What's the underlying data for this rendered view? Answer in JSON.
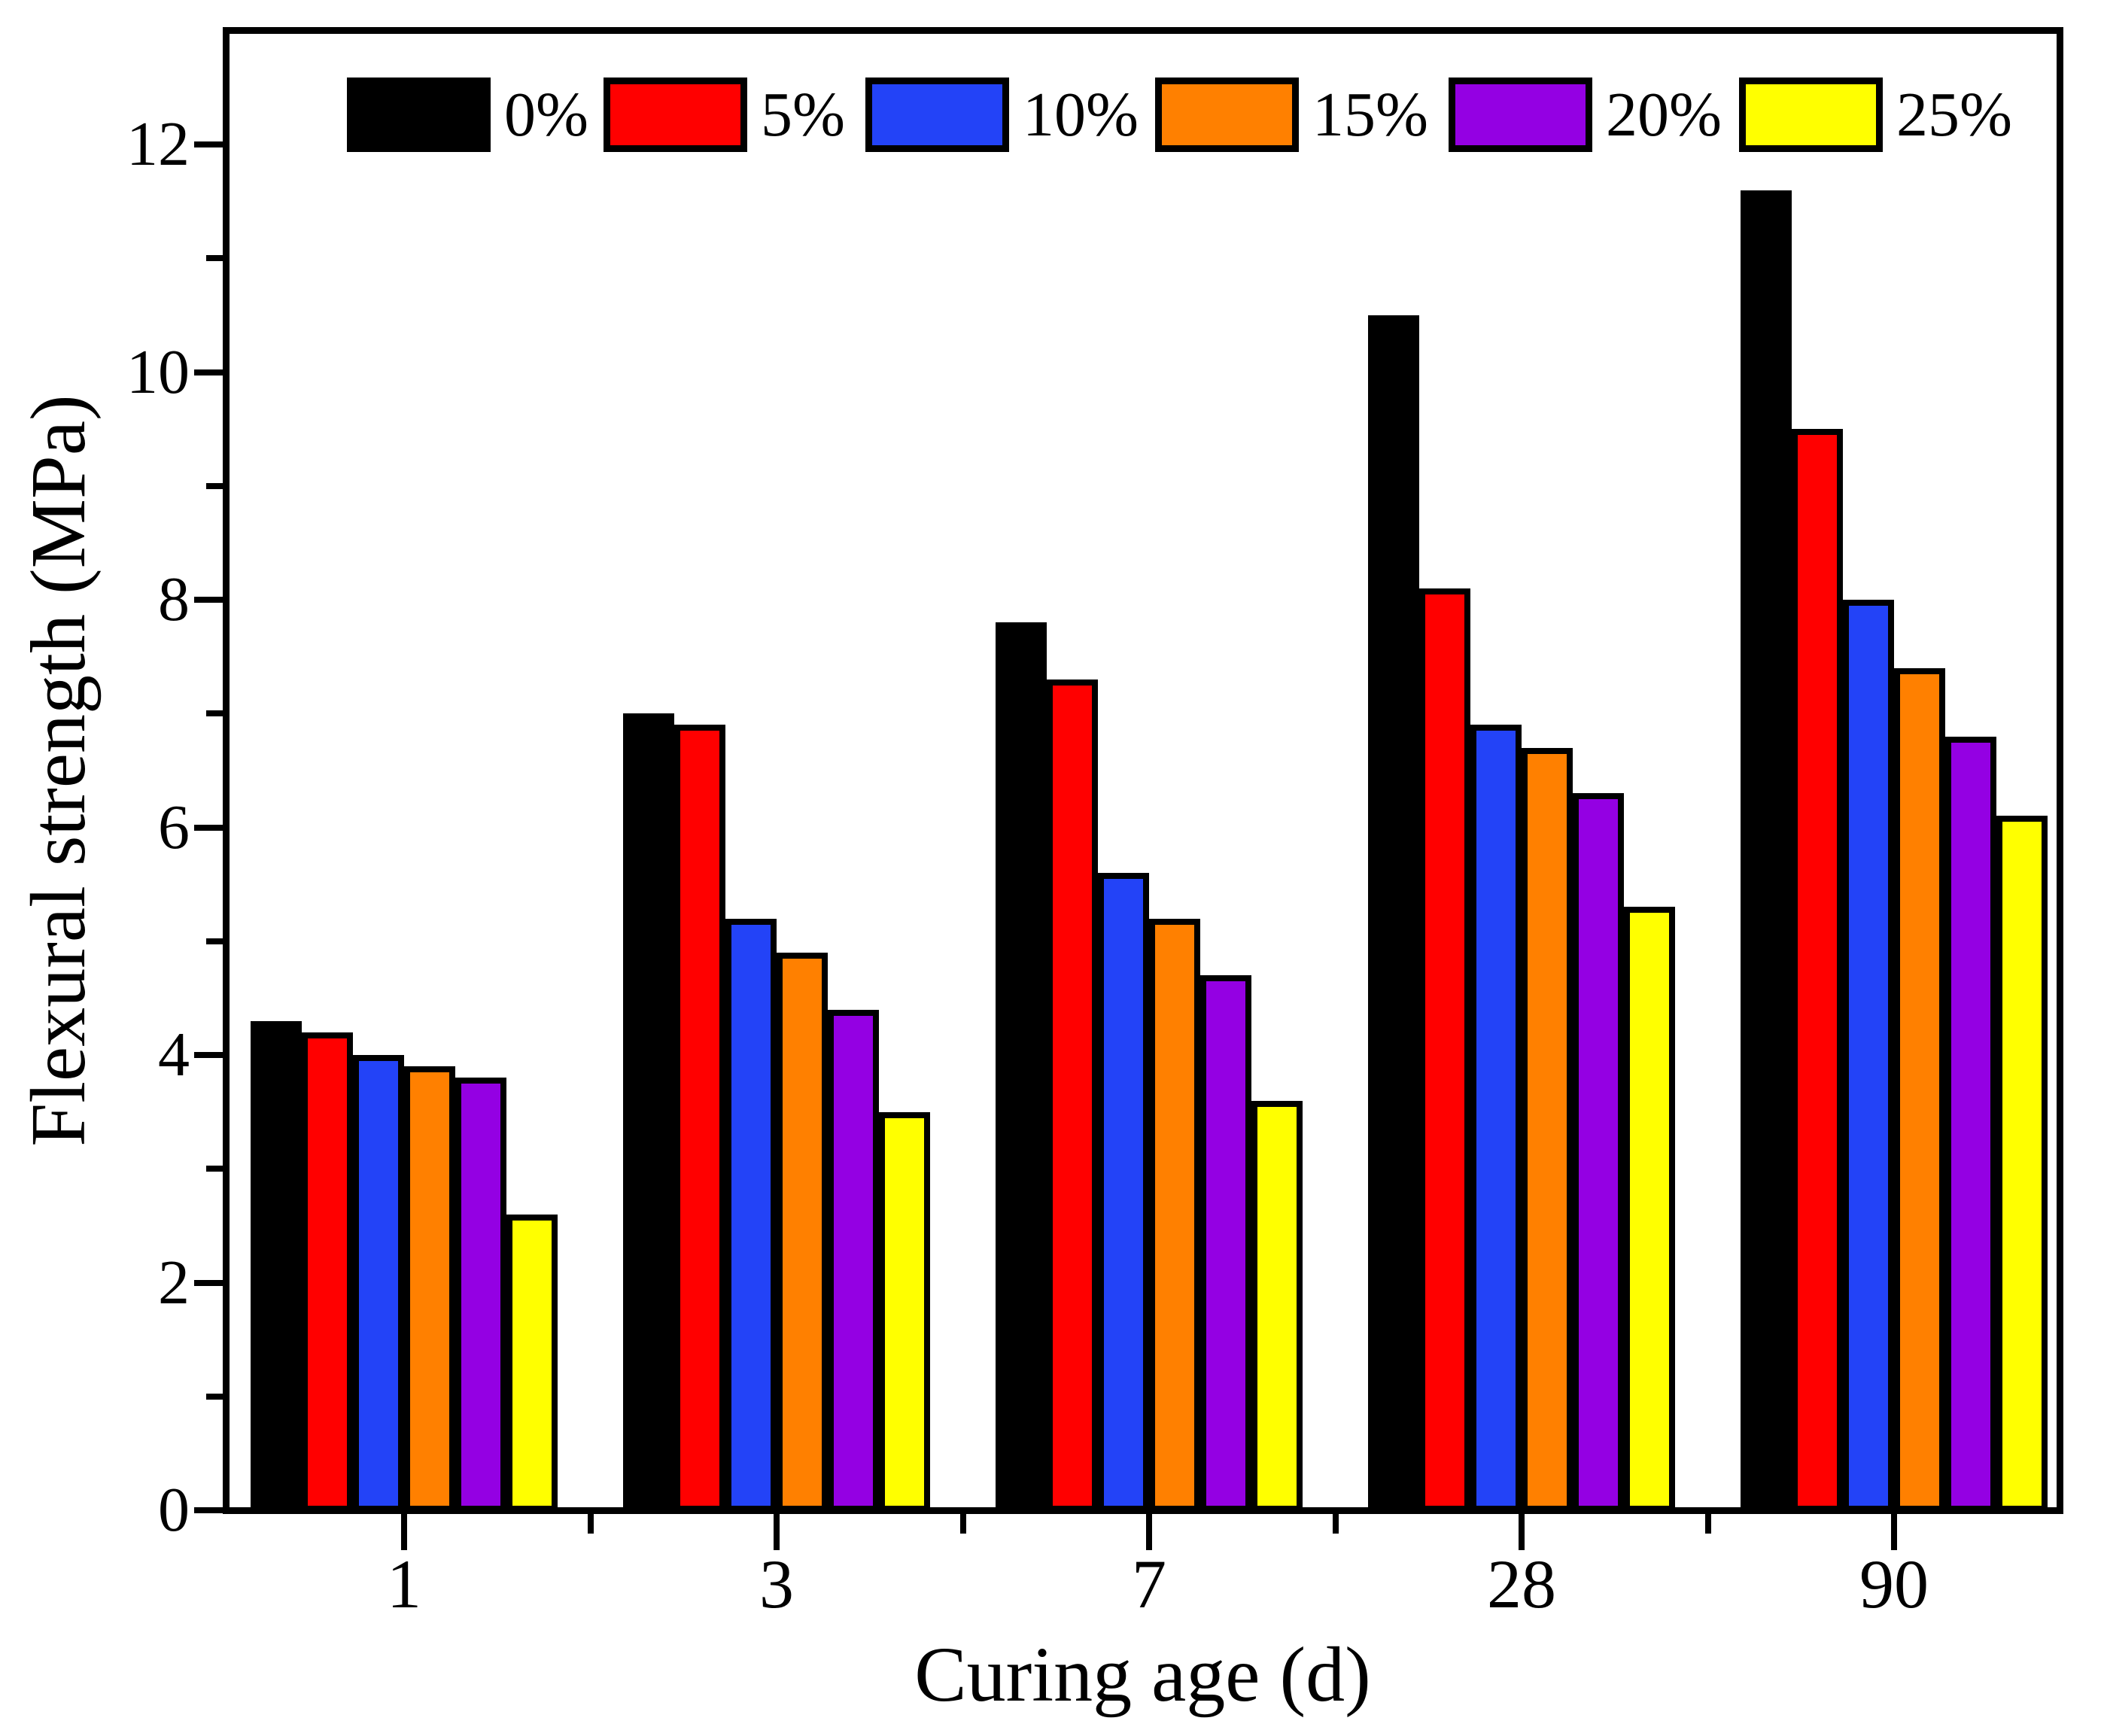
{
  "chart_data": {
    "type": "bar",
    "title": "",
    "xlabel": "Curing age (d)",
    "ylabel": "Flexural strength (MPa)",
    "categories": [
      "1",
      "3",
      "7",
      "28",
      "90"
    ],
    "series": [
      {
        "name": "0%",
        "color": "#000000",
        "values": [
          4.3,
          7.0,
          7.8,
          10.5,
          11.6
        ]
      },
      {
        "name": "5%",
        "color": "#ff0000",
        "values": [
          4.2,
          6.9,
          7.3,
          8.1,
          9.5
        ]
      },
      {
        "name": "10%",
        "color": "#2343f7",
        "values": [
          4.0,
          5.2,
          5.6,
          6.9,
          8.0
        ]
      },
      {
        "name": "15%",
        "color": "#ff8000",
        "values": [
          3.9,
          4.9,
          5.2,
          6.7,
          7.4
        ]
      },
      {
        "name": "20%",
        "color": "#9400e3",
        "values": [
          3.8,
          4.4,
          4.7,
          6.3,
          6.8
        ]
      },
      {
        "name": "25%",
        "color": "#ffff00",
        "values": [
          2.6,
          3.5,
          3.6,
          5.3,
          6.1
        ]
      }
    ],
    "ylim": [
      0,
      13
    ],
    "yticks_major": [
      0,
      2,
      4,
      6,
      8,
      10,
      12
    ],
    "yticks_minor": [
      1,
      3,
      5,
      7,
      9,
      11
    ],
    "bar_border_color": "#000000",
    "grid": false,
    "legend_position": "top-inside"
  }
}
